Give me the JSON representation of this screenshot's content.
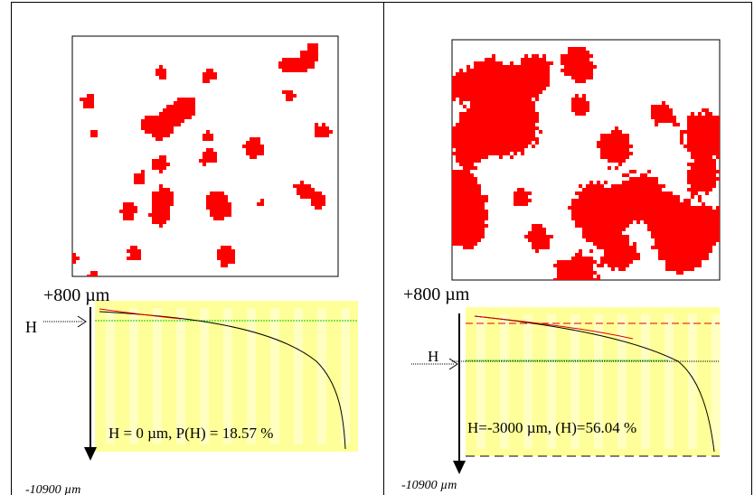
{
  "panels": [
    {
      "top_label": "+800 µm",
      "h_label": "H",
      "annotation": "H = 0 µm, P(H) = 18.57 %",
      "bottom_label": "-10900 µm"
    },
    {
      "top_label": "+800 µm",
      "h_label": "H",
      "annotation": "H=-3000 µm, (H)=56.04 %",
      "bottom_label": "-10900 µm"
    }
  ]
}
